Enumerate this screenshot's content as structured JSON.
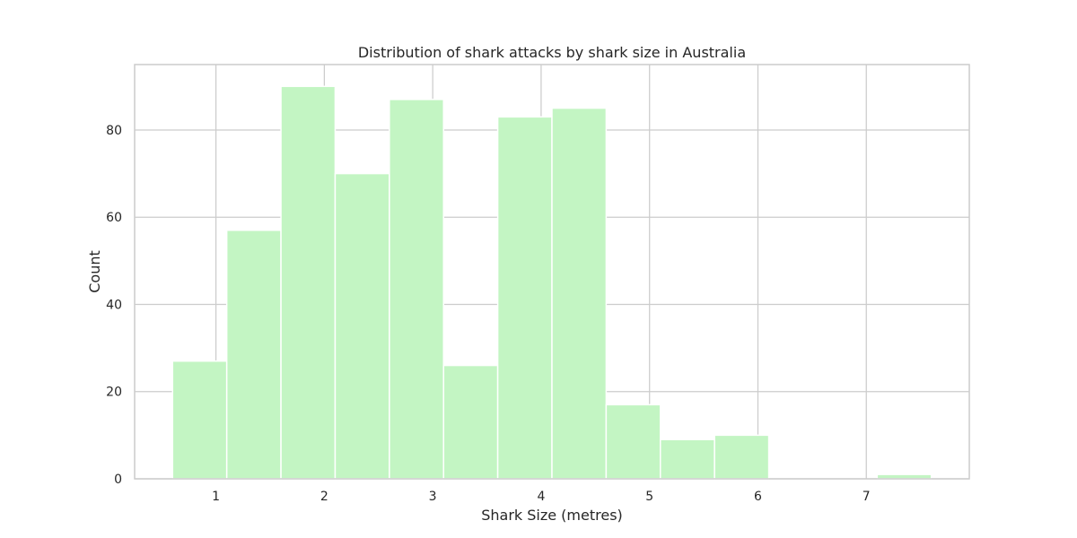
{
  "chart_data": {
    "type": "bar",
    "title": "Distribution of shark attacks by shark size in Australia",
    "xlabel": "Shark Size (metres)",
    "ylabel": "Count",
    "xlim": [
      0.25,
      7.95
    ],
    "ylim": [
      0,
      95
    ],
    "xticks": [
      1,
      2,
      3,
      4,
      5,
      6,
      7
    ],
    "yticks": [
      0,
      20,
      40,
      60,
      80
    ],
    "grid": true,
    "bar_color": "#c3f5c3",
    "bin_edges": [
      0.6,
      1.1,
      1.6,
      2.1,
      2.6,
      3.1,
      3.6,
      4.1,
      4.6,
      5.1,
      5.6,
      6.1,
      6.6,
      7.1,
      7.6
    ],
    "values": [
      27,
      57,
      90,
      70,
      87,
      26,
      83,
      85,
      17,
      9,
      10,
      0,
      0,
      1
    ]
  }
}
